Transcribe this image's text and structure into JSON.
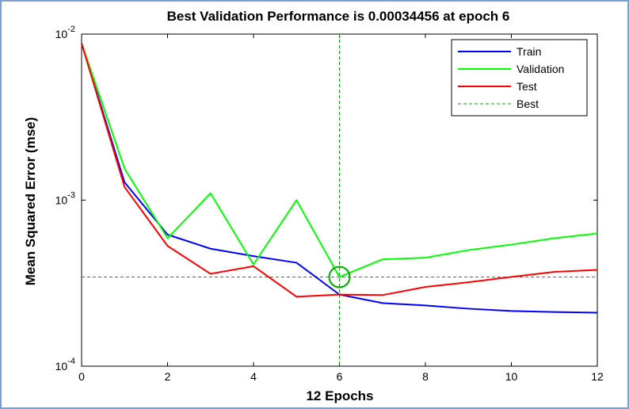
{
  "chart_data": {
    "type": "line",
    "title": "Best Validation Performance is 0.00034456 at epoch 6",
    "xlabel": "12 Epochs",
    "ylabel": "Mean Squared Error  (mse)",
    "xlim": [
      0,
      12
    ],
    "ylim": [
      0.0001,
      0.01
    ],
    "yscale": "log",
    "x_ticks": [
      "0",
      "2",
      "4",
      "6",
      "8",
      "10",
      "12"
    ],
    "y_ticks": [
      {
        "base": "10",
        "exp": "-2",
        "value": 0.01
      },
      {
        "base": "10",
        "exp": "-3",
        "value": 0.001
      },
      {
        "base": "10",
        "exp": "-4",
        "value": 0.0001
      }
    ],
    "x": [
      0,
      1,
      2,
      3,
      4,
      5,
      6,
      7,
      8,
      9,
      10,
      11,
      12
    ],
    "series": [
      {
        "name": "Train",
        "color": "#0000ff",
        "values": [
          0.0088,
          0.00128,
          0.00062,
          0.00051,
          0.00046,
          0.00042,
          0.00027,
          0.00024,
          0.000232,
          0.000222,
          0.000215,
          0.000212,
          0.00021
        ]
      },
      {
        "name": "Validation",
        "color": "#00ff00",
        "values": [
          0.0088,
          0.00155,
          0.00059,
          0.0011,
          0.00041,
          0.001,
          0.00034456,
          0.00044,
          0.00045,
          0.0005,
          0.00054,
          0.00059,
          0.00063
        ]
      },
      {
        "name": "Test",
        "color": "#ff0000",
        "values": [
          0.0088,
          0.0012,
          0.00053,
          0.00036,
          0.0004,
          0.000262,
          0.00027,
          0.000268,
          0.0003,
          0.00032,
          0.000345,
          0.00037,
          0.00038
        ]
      }
    ],
    "best": {
      "name": "Best",
      "epoch": 6,
      "value": 0.00034456,
      "color": "#00aa00"
    },
    "legend_position": "top-right",
    "grid": false
  }
}
